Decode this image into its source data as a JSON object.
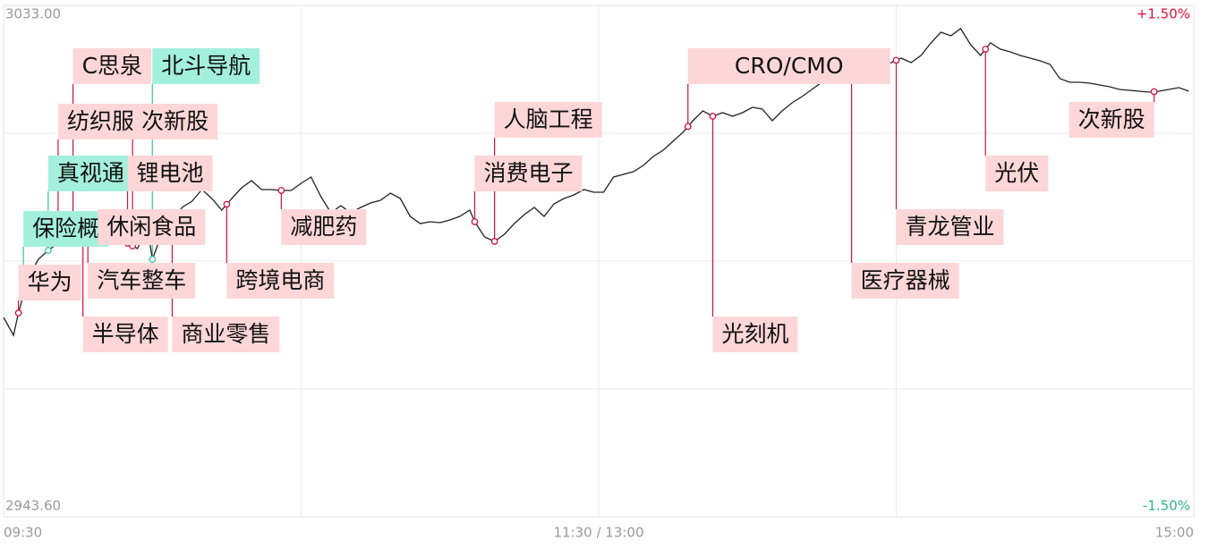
{
  "chart_data": {
    "type": "line",
    "color": "#222222",
    "xlim": [
      0,
      240
    ],
    "xticks": [
      {
        "value": 0,
        "label": "09:30"
      },
      {
        "value": 120,
        "label": "11:30 / 13:00"
      },
      {
        "value": 240,
        "label": "15:00"
      }
    ],
    "ylim": [
      2943.6,
      3033.0
    ],
    "yticks": [
      {
        "value": 2943.6,
        "label": "2943.60"
      },
      {
        "value": 3033.0,
        "label": "3033.00"
      }
    ],
    "y2lim": [
      -1.5,
      1.5
    ],
    "y2ticks": [
      {
        "value": -1.5,
        "label": "-1.50%",
        "color": "#2bb38a"
      },
      {
        "value": 1.5,
        "label": "+1.50%",
        "color": "#e0103a"
      }
    ],
    "grid": true,
    "x": [
      0,
      2,
      3,
      5,
      7,
      9,
      11,
      13,
      15,
      17,
      19,
      21,
      23,
      25,
      27,
      29,
      30,
      32,
      34,
      36,
      38,
      40,
      42,
      44,
      46,
      48,
      50,
      52,
      54,
      56,
      58,
      60,
      62,
      64,
      66,
      68,
      70,
      72,
      74,
      76,
      78,
      80,
      82,
      84,
      86,
      88,
      90,
      92,
      94,
      95,
      97,
      99,
      101,
      103,
      105,
      107,
      109,
      111,
      113,
      115,
      117,
      119,
      121,
      123,
      125,
      127,
      129,
      131,
      133,
      135,
      137,
      139,
      141,
      143,
      145,
      147,
      149,
      151,
      153,
      155,
      157,
      159,
      161,
      163,
      165,
      167,
      169,
      171,
      173,
      175,
      177,
      179,
      181,
      183,
      185,
      187,
      189,
      191,
      193,
      195,
      197,
      199,
      201,
      203,
      205,
      207,
      209,
      211,
      213,
      215,
      217,
      219,
      221,
      223,
      225,
      227,
      229,
      231,
      233,
      235,
      237,
      239
    ],
    "values": [
      2978.45,
      2975.33,
      2979.23,
      2985.48,
      2988.61,
      2990.17,
      2991.42,
      2993.61,
      2991.42,
      2992.05,
      2994.08,
      2996.43,
      2995.18,
      2991.42,
      2990.49,
      2994.08,
      2988.61,
      2993.3,
      2995.18,
      2997.68,
      2998.77,
      3000.8,
      2999.24,
      2997.21,
      2999.24,
      3001.11,
      3002.37,
      3000.8,
      3000.8,
      3000.65,
      3000.65,
      3001.9,
      3002.99,
      2999.55,
      2996.74,
      2997.99,
      2996.74,
      2997.68,
      2998.46,
      2998.93,
      3000.18,
      2999.24,
      2996.11,
      2994.86,
      2995.18,
      2995.02,
      2995.49,
      2996.11,
      2997.21,
      2995.18,
      2992.52,
      2991.74,
      2992.99,
      2994.86,
      2996.43,
      2997.68,
      2996.11,
      2998.3,
      2999.24,
      2999.86,
      3000.8,
      3000.33,
      3000.33,
      3002.99,
      3003.46,
      3003.93,
      3005.02,
      3006.59,
      3007.68,
      3009.24,
      3010.81,
      3012.84,
      3014.56,
      3013.62,
      3014.24,
      3013.62,
      3014.24,
      3015.18,
      3014.87,
      3012.84,
      3014.56,
      3015.96,
      3017.06,
      3018.31,
      3019.56,
      3021.75,
      3023.31,
      3024.56,
      3025.18,
      3023.31,
      3022.68,
      3023.0,
      3023.78,
      3023.0,
      3024.25,
      3026.44,
      3028.31,
      3027.69,
      3028.94,
      3026.12,
      3024.25,
      3026.44,
      3025.34,
      3024.87,
      3024.25,
      3023.78,
      3023.31,
      3022.68,
      3020.18,
      3019.56,
      3019.56,
      3019.4,
      3019.09,
      3018.78,
      3018.31,
      3018.15,
      3018.0,
      3017.84,
      3018.0,
      3018.31,
      3018.62,
      3018.0
    ],
    "annotations": [
      {
        "label": "华为",
        "x": 3,
        "color": "#fdd7d7"
      },
      {
        "label": "汽车整车",
        "x": 17,
        "color": "#fdd7d7"
      },
      {
        "label": "保险概",
        "x": 4,
        "color": "#a3f0dc"
      },
      {
        "label": "休闲食品",
        "x": 19,
        "color": "#fdd7d7"
      },
      {
        "label": "真视通",
        "x": 9,
        "color": "#a3f0dc"
      },
      {
        "label": "锂电池",
        "x": 25,
        "color": "#fdd7d7"
      },
      {
        "label": "纺织服",
        "x": 11,
        "color": "#fdd7d7"
      },
      {
        "label": "次新股",
        "x": 26,
        "color": "#fdd7d7"
      },
      {
        "label": "C思泉",
        "x": 14,
        "color": "#fdd7d7"
      },
      {
        "label": "北斗导航",
        "x": 30,
        "color": "#a3f0dc"
      },
      {
        "label": "半导体",
        "x": 16,
        "color": "#fdd7d7"
      },
      {
        "label": "商业零售",
        "x": 34,
        "color": "#fdd7d7"
      },
      {
        "label": "跨境电商",
        "x": 45,
        "color": "#fdd7d7"
      },
      {
        "label": "减肥药",
        "x": 56,
        "color": "#fdd7d7"
      },
      {
        "label": "消费电子",
        "x": 95,
        "color": "#fdd7d7"
      },
      {
        "label": "人脑工程",
        "x": 99,
        "color": "#fdd7d7"
      },
      {
        "label": "医疗器械",
        "x": 171,
        "color": "#fdd7d7"
      },
      {
        "label": "CRO/CMO",
        "x": 138,
        "color": "#fdd7d7"
      },
      {
        "label": "光刻机",
        "x": 143,
        "color": "#fdd7d7"
      },
      {
        "label": "青龙管业",
        "x": 180,
        "color": "#fdd7d7"
      },
      {
        "label": "光伏",
        "x": 198,
        "color": "#fdd7d7"
      },
      {
        "label": "次新股",
        "x": 232,
        "color": "#fdd7d7"
      }
    ]
  }
}
